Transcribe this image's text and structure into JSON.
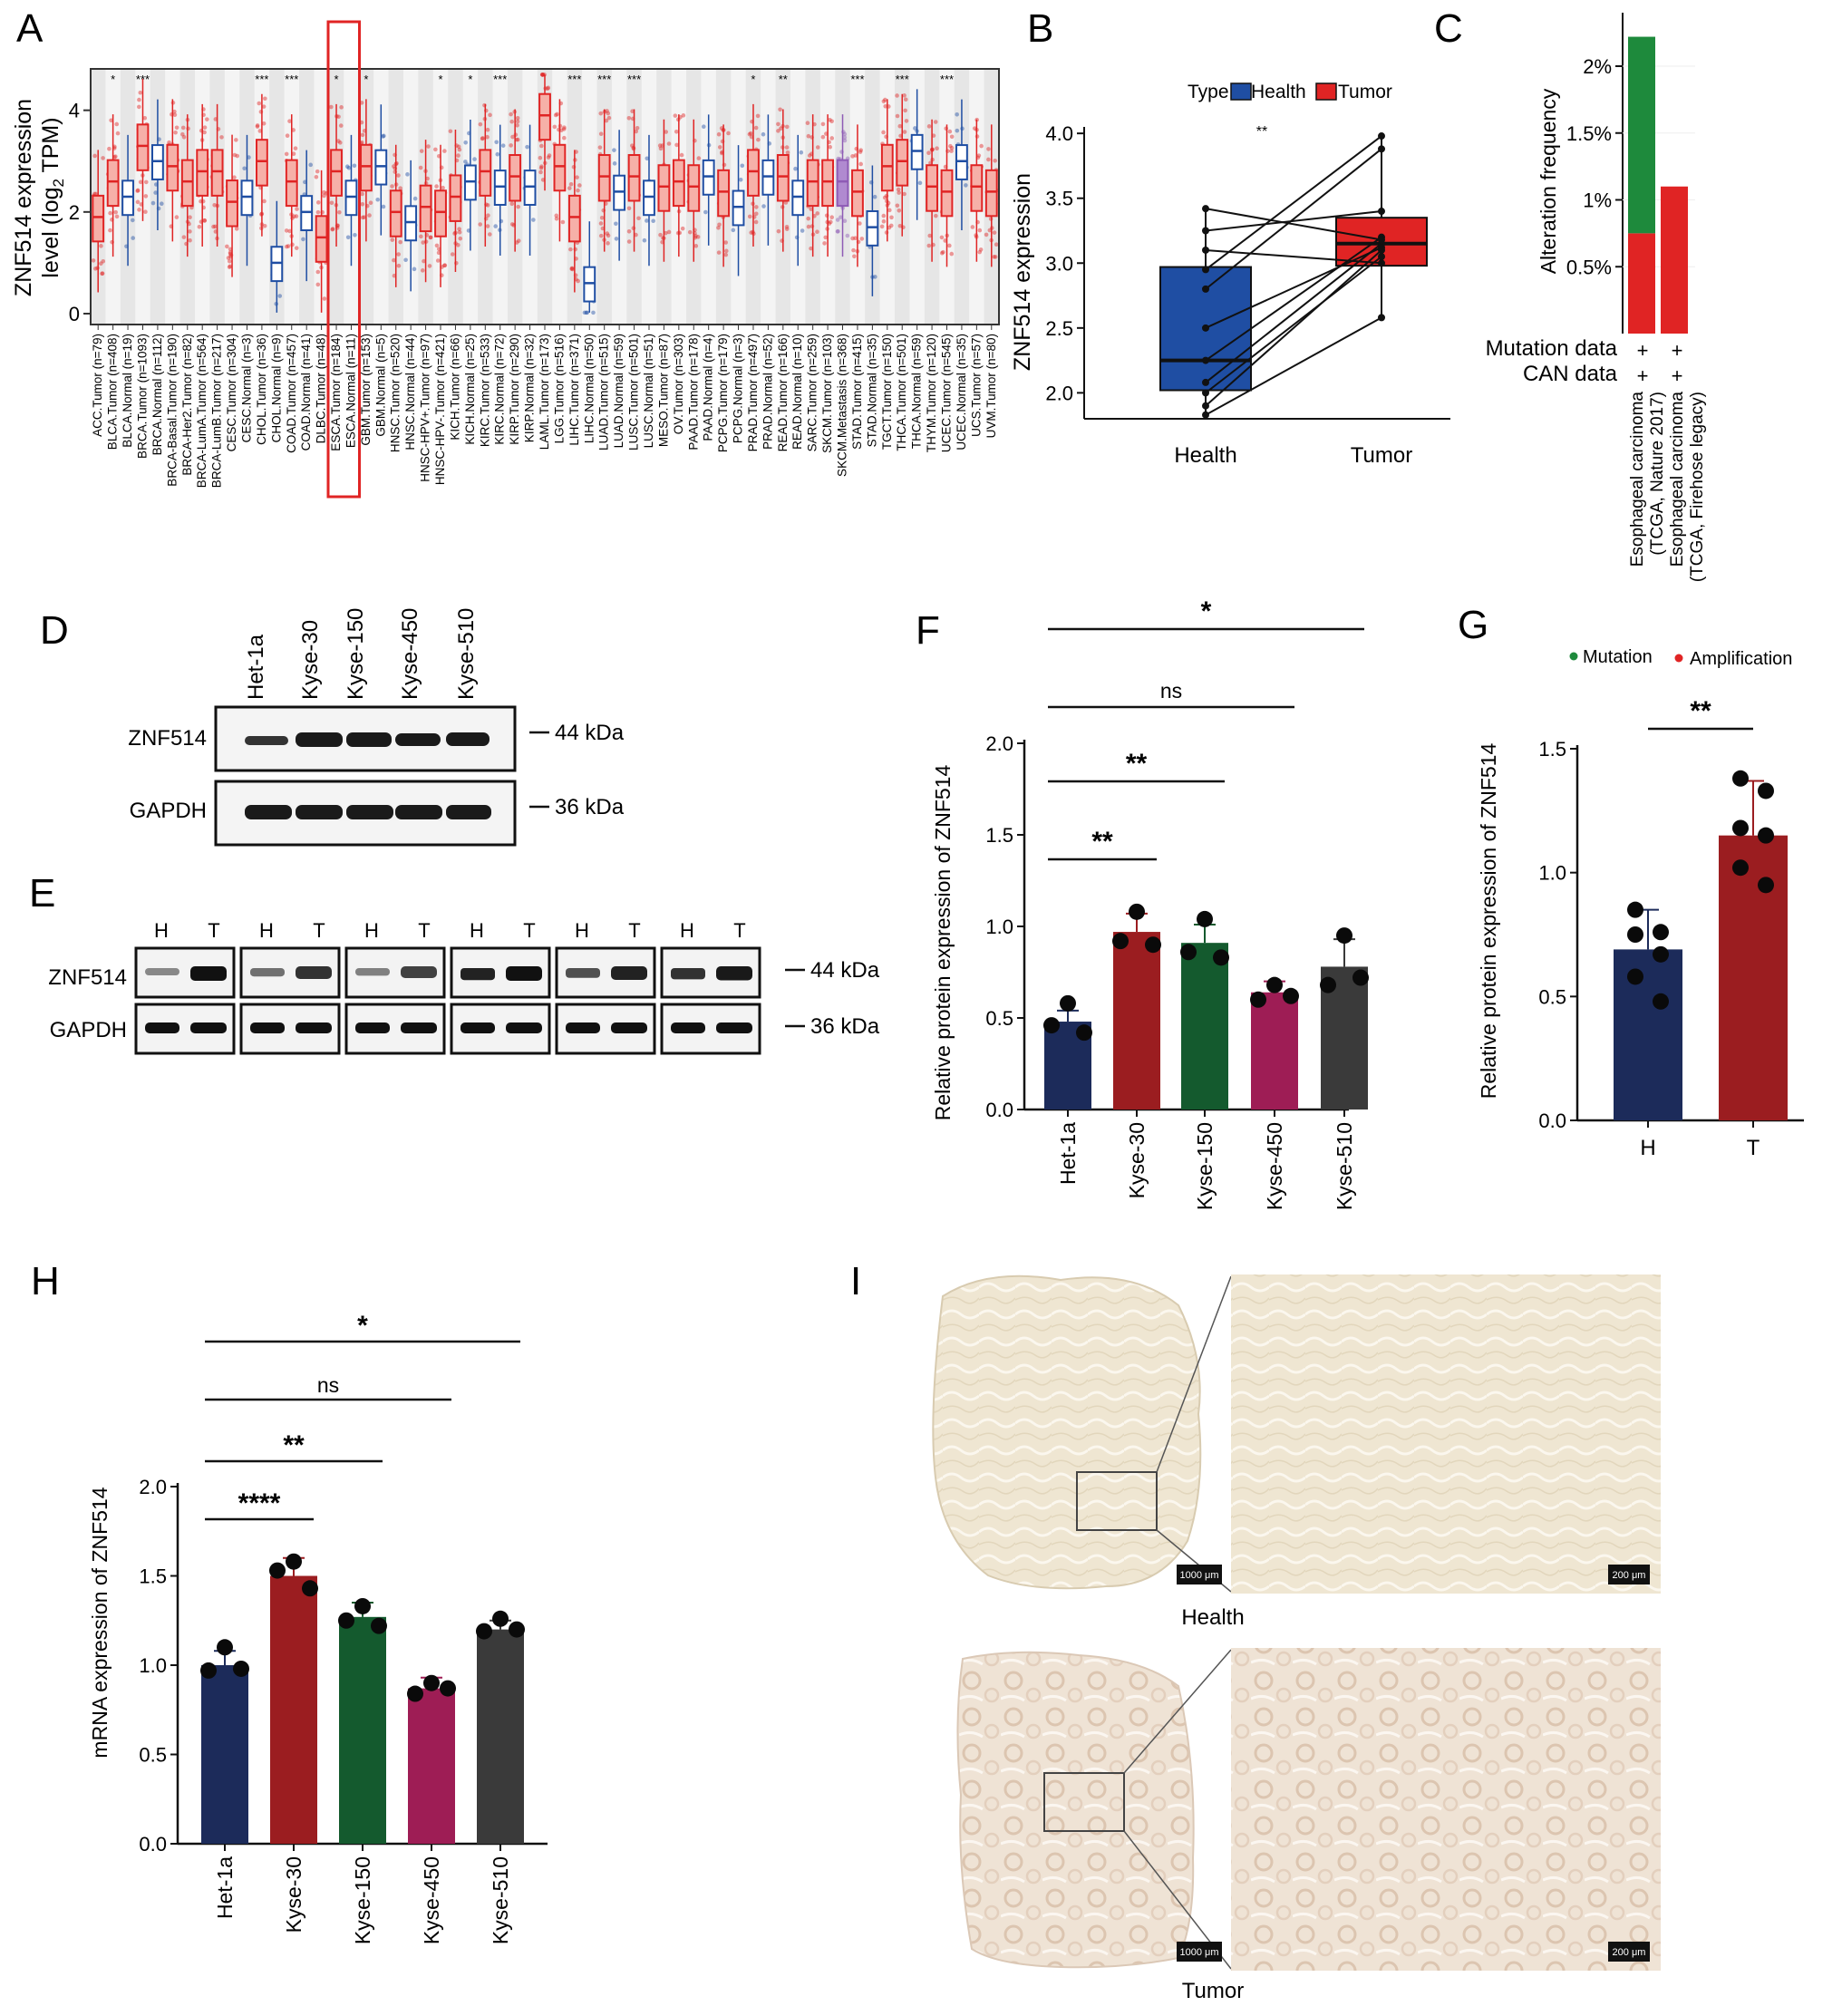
{
  "panel_labels": [
    "A",
    "B",
    "C",
    "D",
    "E",
    "F",
    "G",
    "H",
    "I"
  ],
  "colors": {
    "health": "#1f4ea3",
    "tumor": "#e02424",
    "navy": "#1c2b5a",
    "darkred": "#9b1d20",
    "green": "#145a2e",
    "magenta": "#9e1d55",
    "gray": "#3a3a3a",
    "mut": "#1e8a3c",
    "amp": "#e02424"
  },
  "panel_a": {
    "ylabel_main": "ZNF514 expression",
    "ylabel_sub": "level (log",
    "ylabel_sub2": "2",
    "ylabel_sub3": " TPM)",
    "yticks": [
      "0",
      "2",
      "4"
    ],
    "ylim": [
      0,
      5
    ],
    "groups": [
      {
        "label": "ACC.Tumor (n=79)",
        "sig": "",
        "type": "T"
      },
      {
        "label": "BLCA.Tumor (n=408)",
        "sig": "*",
        "type": "T"
      },
      {
        "label": "BLCA.Normal (n=19)",
        "sig": "",
        "type": "N"
      },
      {
        "label": "BRCA.Tumor (n=1093)",
        "sig": "***",
        "type": "T"
      },
      {
        "label": "BRCA.Normal (n=112)",
        "sig": "",
        "type": "N"
      },
      {
        "label": "BRCA-Basal.Tumor (n=190)",
        "sig": "",
        "type": "T"
      },
      {
        "label": "BRCA-Her2.Tumor (n=82)",
        "sig": "",
        "type": "T"
      },
      {
        "label": "BRCA-LumA.Tumor (n=564)",
        "sig": "",
        "type": "T"
      },
      {
        "label": "BRCA-LumB.Tumor (n=217)",
        "sig": "",
        "type": "T"
      },
      {
        "label": "CESC.Tumor (n=304)",
        "sig": "",
        "type": "T"
      },
      {
        "label": "CESC.Normal (n=3)",
        "sig": "",
        "type": "N"
      },
      {
        "label": "CHOL.Tumor (n=36)",
        "sig": "***",
        "type": "T"
      },
      {
        "label": "CHOL.Normal (n=9)",
        "sig": "",
        "type": "N"
      },
      {
        "label": "COAD.Tumor (n=457)",
        "sig": "***",
        "type": "T"
      },
      {
        "label": "COAD.Normal (n=41)",
        "sig": "",
        "type": "N"
      },
      {
        "label": "DLBC.Tumor (n=48)",
        "sig": "",
        "type": "T"
      },
      {
        "label": "ESCA.Tumor (n=184)",
        "sig": "*",
        "type": "T"
      },
      {
        "label": "ESCA.Normal (n=11)",
        "sig": "",
        "type": "N"
      },
      {
        "label": "GBM.Tumor (n=153)",
        "sig": "*",
        "type": "T"
      },
      {
        "label": "GBM.Normal (n=5)",
        "sig": "",
        "type": "N"
      },
      {
        "label": "HNSC.Tumor (n=520)",
        "sig": "",
        "type": "T"
      },
      {
        "label": "HNSC.Normal (n=44)",
        "sig": "",
        "type": "N"
      },
      {
        "label": "HNSC-HPV+.Tumor (n=97)",
        "sig": "",
        "type": "T"
      },
      {
        "label": "HNSC-HPV-.Tumor (n=421)",
        "sig": "*",
        "type": "T"
      },
      {
        "label": "KICH.Tumor (n=66)",
        "sig": "",
        "type": "T"
      },
      {
        "label": "KICH.Normal (n=25)",
        "sig": "*",
        "type": "N"
      },
      {
        "label": "KIRC.Tumor (n=533)",
        "sig": "",
        "type": "T"
      },
      {
        "label": "KIRC.Normal (n=72)",
        "sig": "***",
        "type": "N"
      },
      {
        "label": "KIRP.Tumor (n=290)",
        "sig": "",
        "type": "T"
      },
      {
        "label": "KIRP.Normal (n=32)",
        "sig": "",
        "type": "N"
      },
      {
        "label": "LAML.Tumor (n=173)",
        "sig": "",
        "type": "T"
      },
      {
        "label": "LGG.Tumor (n=516)",
        "sig": "",
        "type": "T"
      },
      {
        "label": "LIHC.Tumor (n=371)",
        "sig": "***",
        "type": "T"
      },
      {
        "label": "LIHC.Normal (n=50)",
        "sig": "",
        "type": "N"
      },
      {
        "label": "LUAD.Tumor (n=515)",
        "sig": "***",
        "type": "T"
      },
      {
        "label": "LUAD.Normal (n=59)",
        "sig": "",
        "type": "N"
      },
      {
        "label": "LUSC.Tumor (n=501)",
        "sig": "***",
        "type": "T"
      },
      {
        "label": "LUSC.Normal (n=51)",
        "sig": "",
        "type": "N"
      },
      {
        "label": "MESO.Tumor (n=87)",
        "sig": "",
        "type": "T"
      },
      {
        "label": "OV.Tumor (n=303)",
        "sig": "",
        "type": "T"
      },
      {
        "label": "PAAD.Tumor (n=178)",
        "sig": "",
        "type": "T"
      },
      {
        "label": "PAAD.Normal (n=4)",
        "sig": "",
        "type": "N"
      },
      {
        "label": "PCPG.Tumor (n=179)",
        "sig": "",
        "type": "T"
      },
      {
        "label": "PCPG.Normal (n=3)",
        "sig": "",
        "type": "N"
      },
      {
        "label": "PRAD.Tumor (n=497)",
        "sig": "*",
        "type": "T"
      },
      {
        "label": "PRAD.Normal (n=52)",
        "sig": "",
        "type": "N"
      },
      {
        "label": "READ.Tumor (n=166)",
        "sig": "**",
        "type": "T"
      },
      {
        "label": "READ.Normal (n=10)",
        "sig": "",
        "type": "N"
      },
      {
        "label": "SARC.Tumor (n=259)",
        "sig": "",
        "type": "T"
      },
      {
        "label": "SKCM.Tumor (n=103)",
        "sig": "",
        "type": "T"
      },
      {
        "label": "SKCM.Metastasis (n=368)",
        "sig": "",
        "type": "M"
      },
      {
        "label": "STAD.Tumor (n=415)",
        "sig": "***",
        "type": "T"
      },
      {
        "label": "STAD.Normal (n=35)",
        "sig": "",
        "type": "N"
      },
      {
        "label": "TGCT.Tumor (n=150)",
        "sig": "",
        "type": "T"
      },
      {
        "label": "THCA.Tumor (n=501)",
        "sig": "***",
        "type": "T"
      },
      {
        "label": "THCA.Normal (n=59)",
        "sig": "",
        "type": "N"
      },
      {
        "label": "THYM.Tumor (n=120)",
        "sig": "",
        "type": "T"
      },
      {
        "label": "UCEC.Tumor (n=545)",
        "sig": "***",
        "type": "T"
      },
      {
        "label": "UCEC.Normal (n=35)",
        "sig": "",
        "type": "N"
      },
      {
        "label": "UCS.Tumor (n=57)",
        "sig": "",
        "type": "T"
      },
      {
        "label": "UVM.Tumor (n=80)",
        "sig": "",
        "type": "T"
      }
    ],
    "medians": [
      1.9,
      2.6,
      2.3,
      3.3,
      3.0,
      2.9,
      2.6,
      2.8,
      2.8,
      2.2,
      2.3,
      3.0,
      1.0,
      2.6,
      2.0,
      1.5,
      2.8,
      2.3,
      2.9,
      2.9,
      2.0,
      1.8,
      2.1,
      2.0,
      2.3,
      2.6,
      2.8,
      2.5,
      2.7,
      2.5,
      3.9,
      2.9,
      1.9,
      0.6,
      2.7,
      2.4,
      2.7,
      2.3,
      2.5,
      2.6,
      2.5,
      2.7,
      2.4,
      2.1,
      2.8,
      2.7,
      2.7,
      2.3,
      2.6,
      2.6,
      2.6,
      2.4,
      1.7,
      2.9,
      3.0,
      3.2,
      2.5,
      2.4,
      3.0,
      2.5,
      2.4
    ],
    "highlight_label": "ESCA"
  },
  "panel_b": {
    "ylabel": "ZNF514 expression",
    "legend_title": "Type",
    "legend": [
      "Health",
      "Tumor"
    ],
    "categories": [
      "Health",
      "Tumor"
    ],
    "yticks": [
      "2.0",
      "2.5",
      "3.0",
      "3.5",
      "4.0"
    ],
    "ylim": [
      1.8,
      4.05
    ],
    "sig": "**",
    "box_health": {
      "q1": 2.02,
      "median": 2.25,
      "q3": 2.97,
      "min": 1.83,
      "max": 3.42
    },
    "box_tumor": {
      "q1": 2.98,
      "median": 3.15,
      "q3": 3.35,
      "min": 2.58,
      "max": 3.98
    },
    "pairs": [
      [
        1.83,
        2.58
      ],
      [
        1.9,
        3.1
      ],
      [
        2.0,
        3.05
      ],
      [
        2.08,
        3.15
      ],
      [
        2.25,
        3.2
      ],
      [
        2.5,
        3.12
      ],
      [
        2.8,
        3.88
      ],
      [
        2.95,
        3.98
      ],
      [
        3.1,
        3.0
      ],
      [
        3.25,
        3.4
      ],
      [
        3.42,
        3.18
      ]
    ]
  },
  "panel_c": {
    "ylabel": "Alteration frequency",
    "yticks": [
      "0.5%",
      "1%",
      "1.5%",
      "2%"
    ],
    "ylim": [
      0,
      2.4
    ],
    "row_labels": [
      "Mutation data",
      "CAN data"
    ],
    "row_marks": [
      [
        "+",
        "+"
      ],
      [
        "+",
        "+"
      ]
    ],
    "studies": [
      "Esophageal carcinoma (TCGA, Nature 2017)",
      "Esophageal carcinoma (TCGA, Firehose legacy)"
    ],
    "study_lines": [
      [
        "Esophageal carcinoma",
        "(TCGA, Nature 2017)"
      ],
      [
        "Esophageal carcinoma",
        "(TCGA, Firehose legacy)"
      ]
    ],
    "amplification": [
      0.75,
      1.1
    ],
    "mutation": [
      1.47,
      0
    ]
  },
  "panel_d": {
    "lanes": [
      "Het-1a",
      "Kyse-30",
      "Kyse-150",
      "Kyse-450",
      "Kyse-510"
    ],
    "rows": [
      "ZNF514",
      "GAPDH"
    ],
    "markers": [
      "44 kDa",
      "36 kDa"
    ]
  },
  "panel_e": {
    "lane_labels": [
      "H",
      "T"
    ],
    "pairs": 6,
    "rows": [
      "ZNF514",
      "GAPDH"
    ],
    "markers": [
      "44 kDa",
      "36 kDa"
    ]
  },
  "panel_f": {
    "ylabel": "Relative protein expression of ZNF514",
    "categories": [
      "Het-1a",
      "Kyse-30",
      "Kyse-150",
      "Kyse-450",
      "Kyse-510"
    ],
    "values": [
      0.48,
      0.97,
      0.91,
      0.64,
      0.78
    ],
    "sd": [
      0.06,
      0.1,
      0.1,
      0.06,
      0.15
    ],
    "points": [
      [
        0.58,
        0.46,
        0.42
      ],
      [
        1.08,
        0.92,
        0.9
      ],
      [
        1.04,
        0.86,
        0.83
      ],
      [
        0.68,
        0.6,
        0.62
      ],
      [
        0.95,
        0.68,
        0.72
      ]
    ],
    "yticks": [
      "0.0",
      "0.5",
      "1.0",
      "1.5",
      "2.0"
    ],
    "ylim": [
      0,
      2.0
    ],
    "sig": [
      {
        "from": 0,
        "to": 1,
        "label": "**"
      },
      {
        "from": 0,
        "to": 2,
        "label": "**"
      },
      {
        "from": 0,
        "to": 3,
        "label": "ns"
      },
      {
        "from": 0,
        "to": 4,
        "label": "*"
      }
    ]
  },
  "panel_g": {
    "ylabel": "Relative protein expression of ZNF514",
    "legend": [
      "Mutation",
      "Amplification"
    ],
    "categories": [
      "H",
      "T"
    ],
    "values": [
      0.69,
      1.15
    ],
    "sd": [
      0.16,
      0.22
    ],
    "points": [
      [
        0.85,
        0.76,
        0.75,
        0.67,
        0.58,
        0.48
      ],
      [
        1.38,
        1.33,
        1.18,
        1.15,
        1.02,
        0.95
      ]
    ],
    "yticks": [
      "0.0",
      "0.5",
      "1.0",
      "1.5"
    ],
    "ylim": [
      0,
      1.5
    ],
    "sig": "**"
  },
  "panel_h": {
    "ylabel": "mRNA expression of ZNF514",
    "categories": [
      "Het-1a",
      "Kyse-30",
      "Kyse-150",
      "Kyse-450",
      "Kyse-510"
    ],
    "values": [
      1.0,
      1.5,
      1.27,
      0.87,
      1.2
    ],
    "sd": [
      0.08,
      0.1,
      0.08,
      0.06,
      0.05
    ],
    "points": [
      [
        1.1,
        0.97,
        0.98
      ],
      [
        1.58,
        1.53,
        1.43
      ],
      [
        1.33,
        1.25,
        1.22
      ],
      [
        0.9,
        0.84,
        0.87
      ],
      [
        1.26,
        1.19,
        1.2
      ]
    ],
    "yticks": [
      "0.0",
      "0.5",
      "1.0",
      "1.5",
      "2.0"
    ],
    "ylim": [
      0,
      2.0
    ],
    "sig": [
      {
        "from": 0,
        "to": 1,
        "label": "****"
      },
      {
        "from": 0,
        "to": 2,
        "label": "**"
      },
      {
        "from": 0,
        "to": 3,
        "label": "ns"
      },
      {
        "from": 0,
        "to": 4,
        "label": "*"
      }
    ]
  },
  "panel_i": {
    "captions": [
      "Health",
      "Tumor"
    ],
    "scale_bars": [
      "1000 μm",
      "200 μm"
    ]
  }
}
